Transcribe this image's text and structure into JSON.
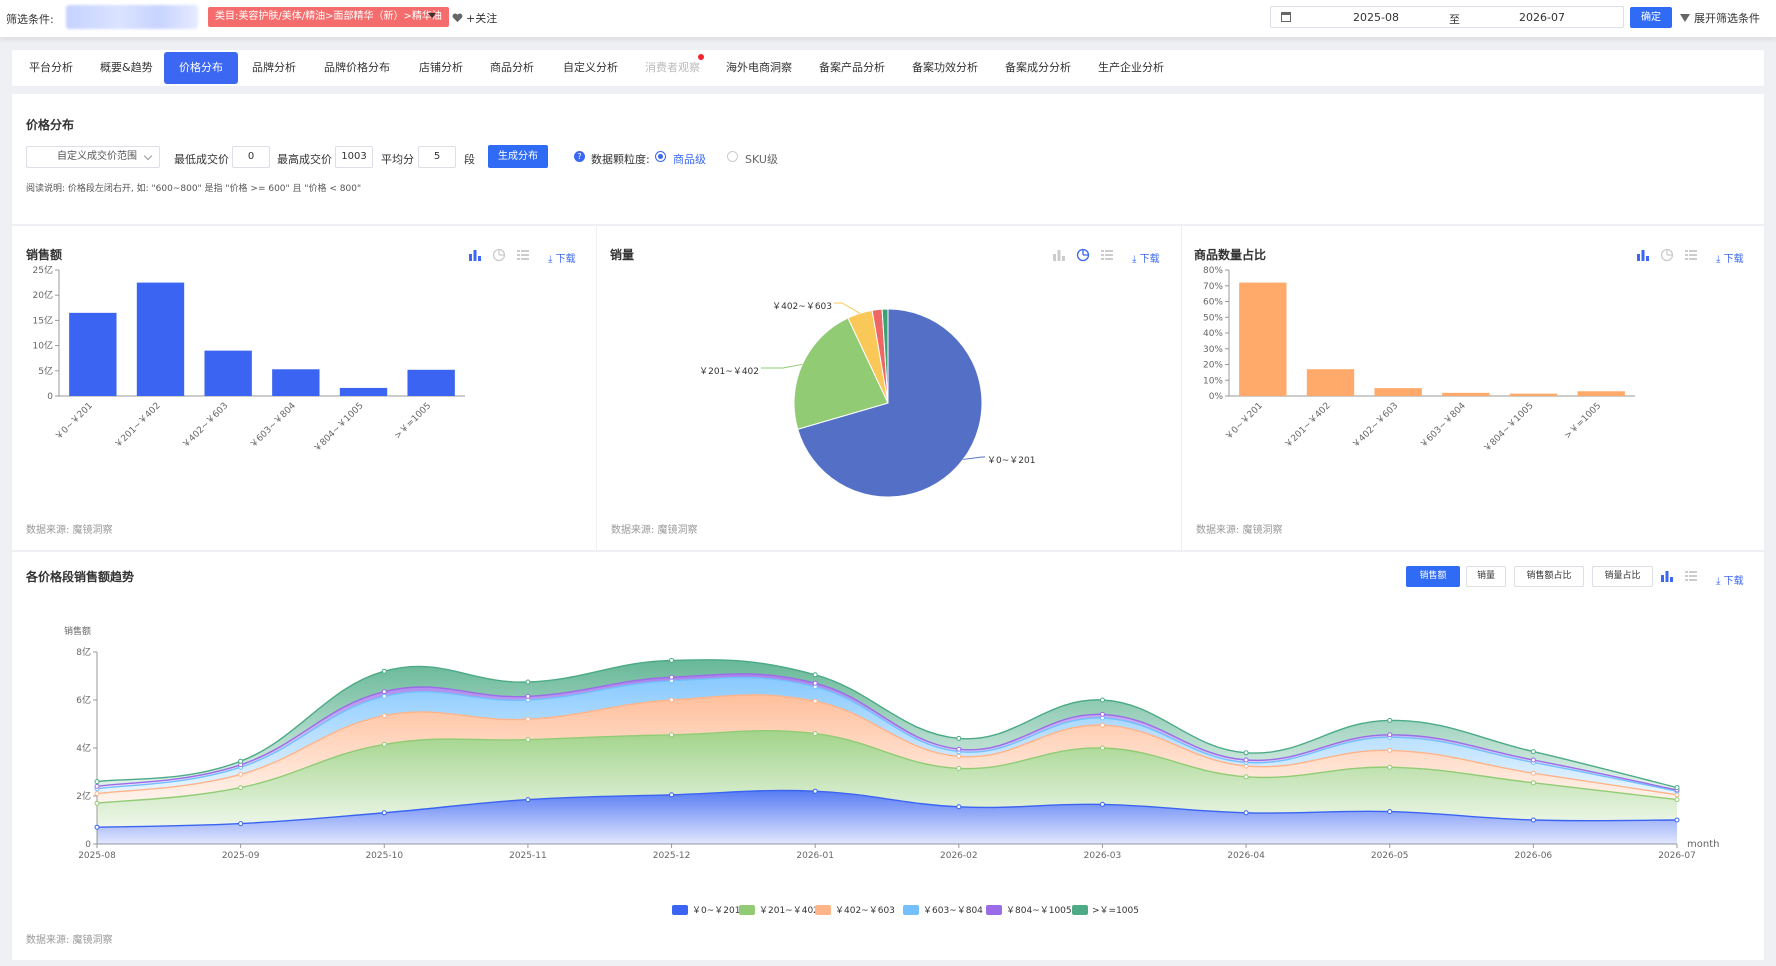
{
  "filter": {
    "label": "筛选条件:",
    "category": "类目:美容护肤/美体/精油>面部精华（新）>精华油",
    "follow": "+关注",
    "date_start": "2025-08",
    "date_sep": "至",
    "date_end": "2026-07",
    "ok": "确定",
    "expand": "展开筛选条件"
  },
  "tabs": [
    "平台分析",
    "概要&趋势",
    "价格分布",
    "品牌分析",
    "品牌价格分布",
    "店铺分析",
    "商品分析",
    "自定义分析",
    "消费者观察",
    "海外电商洞察",
    "备案产品分析",
    "备案功效分析",
    "备案成分分析",
    "生产企业分析"
  ],
  "active_tab": "价格分布",
  "price": {
    "title": "价格分布",
    "range_select": "自定义成交价范围",
    "min_label": "最低成交价",
    "min_value": "0",
    "max_label": "最高成交价",
    "max_value": "1003",
    "avg_label": "平均分",
    "seg_value": "5",
    "seg_unit": "段",
    "gen_button": "生成分布",
    "granularity_label": "数据颗粒度:",
    "opt_product": "商品级",
    "opt_sku": "SKU级",
    "note": "阅读说明: 价格段左闭右开, 如: \"600~800\" 是指 \"价格 >= 600\" 且 \"价格 < 800\""
  },
  "download": "下载",
  "source": "数据来源: 魔镜洞察",
  "panels": {
    "sales_amount": "销售额",
    "sales_volume": "销量",
    "item_share": "商品数量占比",
    "trend": "各价格段销售额趋势"
  },
  "trend_buttons": [
    "销售额",
    "销量",
    "销售额占比",
    "销量占比"
  ],
  "colors": {
    "primary": "#3b67f2",
    "bar_blue": "#3b64f2",
    "bar_orange": "#ffa96b"
  },
  "chart_data": [
    {
      "type": "bar",
      "title": "销售额",
      "categories": [
        "￥0~￥201",
        "￥201~￥402",
        "￥402~￥603",
        "￥603~￥804",
        "￥804~￥1005",
        ">￥=1005"
      ],
      "values": [
        16.5,
        22.5,
        9,
        5.3,
        1.6,
        5.2
      ],
      "ylim": [
        0,
        25
      ],
      "yticks": [
        "0",
        "5亿",
        "10亿",
        "15亿",
        "20亿",
        "25亿"
      ]
    },
    {
      "type": "pie",
      "title": "销量",
      "labels": [
        "￥0~￥201",
        "￥201~￥402",
        "￥402~￥603",
        "￥603~￥804",
        "￥804~￥1005"
      ],
      "values": [
        70.5,
        22.5,
        4.3,
        1.7,
        1.0
      ],
      "colors": [
        "#5470c6",
        "#91cc75",
        "#fac858",
        "#ee6666",
        "#3ba272"
      ]
    },
    {
      "type": "bar",
      "title": "商品数量占比",
      "categories": [
        "￥0~￥201",
        "￥201~￥402",
        "￥402~￥603",
        "￥603~￥804",
        "￥804~￥1005",
        ">￥=1005"
      ],
      "values": [
        72,
        17,
        5,
        2,
        1.5,
        3
      ],
      "ylim": [
        0,
        80
      ],
      "yticks": [
        "0%",
        "10%",
        "20%",
        "30%",
        "40%",
        "50%",
        "60%",
        "70%",
        "80%"
      ]
    },
    {
      "type": "area",
      "title": "各价格段销售额趋势",
      "ylabel": "销售额",
      "xlabel": "month",
      "stacked": true,
      "x": [
        "2025-08",
        "2025-09",
        "2025-10",
        "2025-11",
        "2025-12",
        "2026-01",
        "2026-02",
        "2026-03",
        "2026-04",
        "2026-05",
        "2026-06",
        "2026-07"
      ],
      "ylim": [
        0,
        8
      ],
      "yticks": [
        "0",
        "2亿",
        "4亿",
        "6亿",
        "8亿"
      ],
      "series": [
        {
          "name": "￥0~￥201",
          "color": "#3b64f2",
          "values": [
            0.7,
            0.85,
            1.3,
            1.85,
            2.05,
            2.2,
            1.55,
            1.65,
            1.3,
            1.35,
            1.0,
            1.0
          ]
        },
        {
          "name": "￥201~￥402",
          "color": "#91cc75",
          "values": [
            1.0,
            1.5,
            2.85,
            2.5,
            2.5,
            2.4,
            1.6,
            2.35,
            1.5,
            1.85,
            1.55,
            0.85
          ]
        },
        {
          "name": "￥402~￥603",
          "color": "#ffb48a",
          "values": [
            0.4,
            0.55,
            1.2,
            0.85,
            1.45,
            1.35,
            0.5,
            0.95,
            0.45,
            0.7,
            0.4,
            0.2
          ]
        },
        {
          "name": "￥603~￥804",
          "color": "#73c0ff",
          "values": [
            0.2,
            0.3,
            0.8,
            0.8,
            0.8,
            0.6,
            0.2,
            0.3,
            0.15,
            0.55,
            0.45,
            0.15
          ]
        },
        {
          "name": "￥804~￥1005",
          "color": "#9a6ce8",
          "values": [
            0.1,
            0.1,
            0.2,
            0.15,
            0.15,
            0.15,
            0.1,
            0.15,
            0.1,
            0.1,
            0.1,
            0.05
          ]
        },
        {
          "name": ">￥=1005",
          "color": "#4cab86",
          "values": [
            0.2,
            0.15,
            0.85,
            0.6,
            0.7,
            0.35,
            0.45,
            0.6,
            0.3,
            0.6,
            0.35,
            0.1
          ]
        }
      ]
    }
  ]
}
